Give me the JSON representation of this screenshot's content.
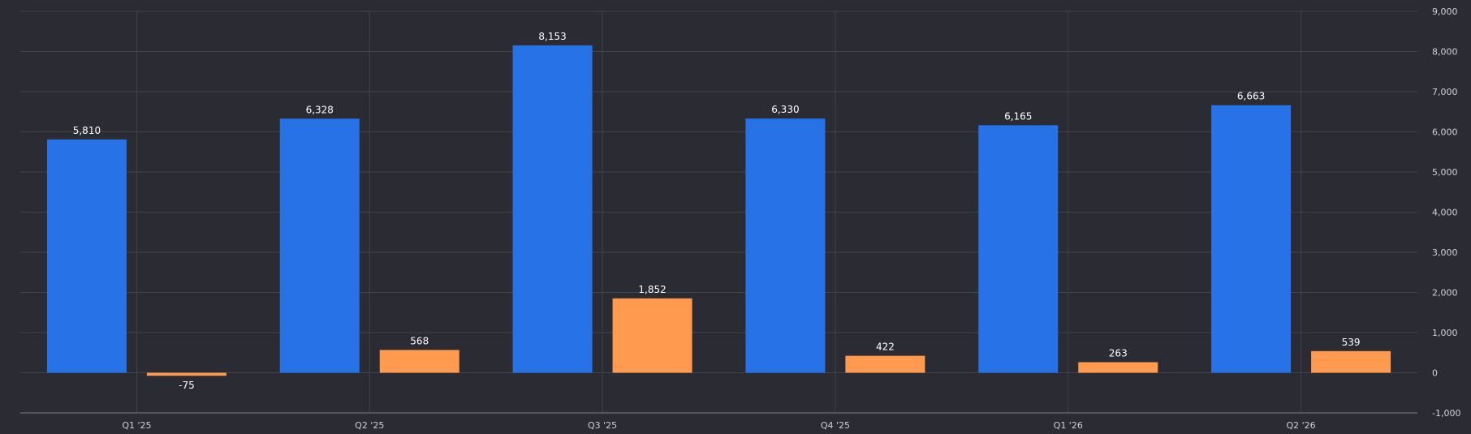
{
  "chart_data": {
    "type": "bar",
    "categories": [
      "Q1 '25",
      "Q2 '25",
      "Q3 '25",
      "Q4 '25",
      "Q1 '26",
      "Q2 '26"
    ],
    "series": [
      {
        "color": "#2672e6",
        "values": [
          5810,
          6328,
          8153,
          6330,
          6165,
          6663
        ],
        "labels": [
          "5,810",
          "6,328",
          "8,153",
          "6,330",
          "6,165",
          "6,663"
        ]
      },
      {
        "color": "#ff9a4f",
        "values": [
          -75,
          568,
          1852,
          422,
          263,
          539
        ],
        "labels": [
          "-75",
          "568",
          "1,852",
          "422",
          "263",
          "539"
        ]
      }
    ],
    "ylim": [
      -1000,
      9000
    ],
    "yticks": [
      -1000,
      0,
      1000,
      2000,
      3000,
      4000,
      5000,
      6000,
      7000,
      8000,
      9000
    ],
    "ytick_labels": [
      "-1,000",
      "0",
      "1,000",
      "2,000",
      "3,000",
      "4,000",
      "5,000",
      "6,000",
      "7,000",
      "8,000",
      "9,000"
    ],
    "y_axis_side": "right",
    "grid": true,
    "legend": "none"
  }
}
